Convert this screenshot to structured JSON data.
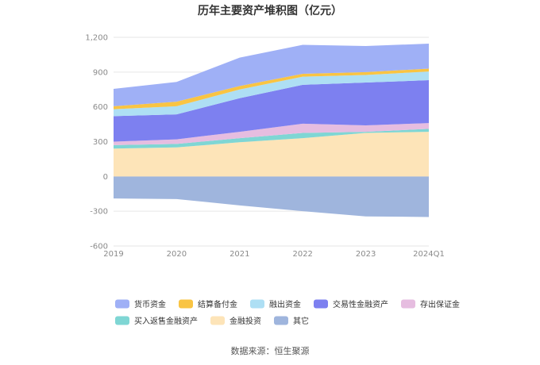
{
  "chart_data": {
    "type": "area",
    "title": "历年主要资产堆积图（亿元）",
    "source": "数据来源：恒生聚源",
    "x": [
      "2019",
      "2020",
      "2021",
      "2022",
      "2023",
      "2024Q1"
    ],
    "yticks": [
      "1,200",
      "900",
      "600",
      "300",
      "0",
      "-300",
      "-600"
    ],
    "ylim": [
      -600,
      1200
    ],
    "grid": true,
    "legend_position": "bottom",
    "series": [
      {
        "name": "货币资金",
        "color": "#9fb0f6",
        "values": [
          150,
          170,
          245,
          250,
          225,
          215
        ]
      },
      {
        "name": "结算备付金",
        "color": "#f9c443",
        "values": [
          25,
          40,
          30,
          25,
          25,
          25
        ]
      },
      {
        "name": "融出资金",
        "color": "#aedff4",
        "values": [
          60,
          70,
          75,
          70,
          65,
          75
        ]
      },
      {
        "name": "交易性金融资产",
        "color": "#7d80f0",
        "values": [
          220,
          215,
          290,
          335,
          370,
          370
        ]
      },
      {
        "name": "存出保证金",
        "color": "#e6bde0",
        "values": [
          30,
          40,
          55,
          80,
          55,
          50
        ]
      },
      {
        "name": "买入返售金融资产",
        "color": "#7fd6d4",
        "values": [
          30,
          30,
          35,
          45,
          10,
          25
        ]
      },
      {
        "name": "金融投资",
        "color": "#fde4b8",
        "values": [
          240,
          250,
          295,
          330,
          375,
          385
        ]
      },
      {
        "name": "其它",
        "color": "#9fb5dd",
        "values": [
          -190,
          -195,
          -250,
          -300,
          -345,
          -350
        ]
      }
    ]
  }
}
